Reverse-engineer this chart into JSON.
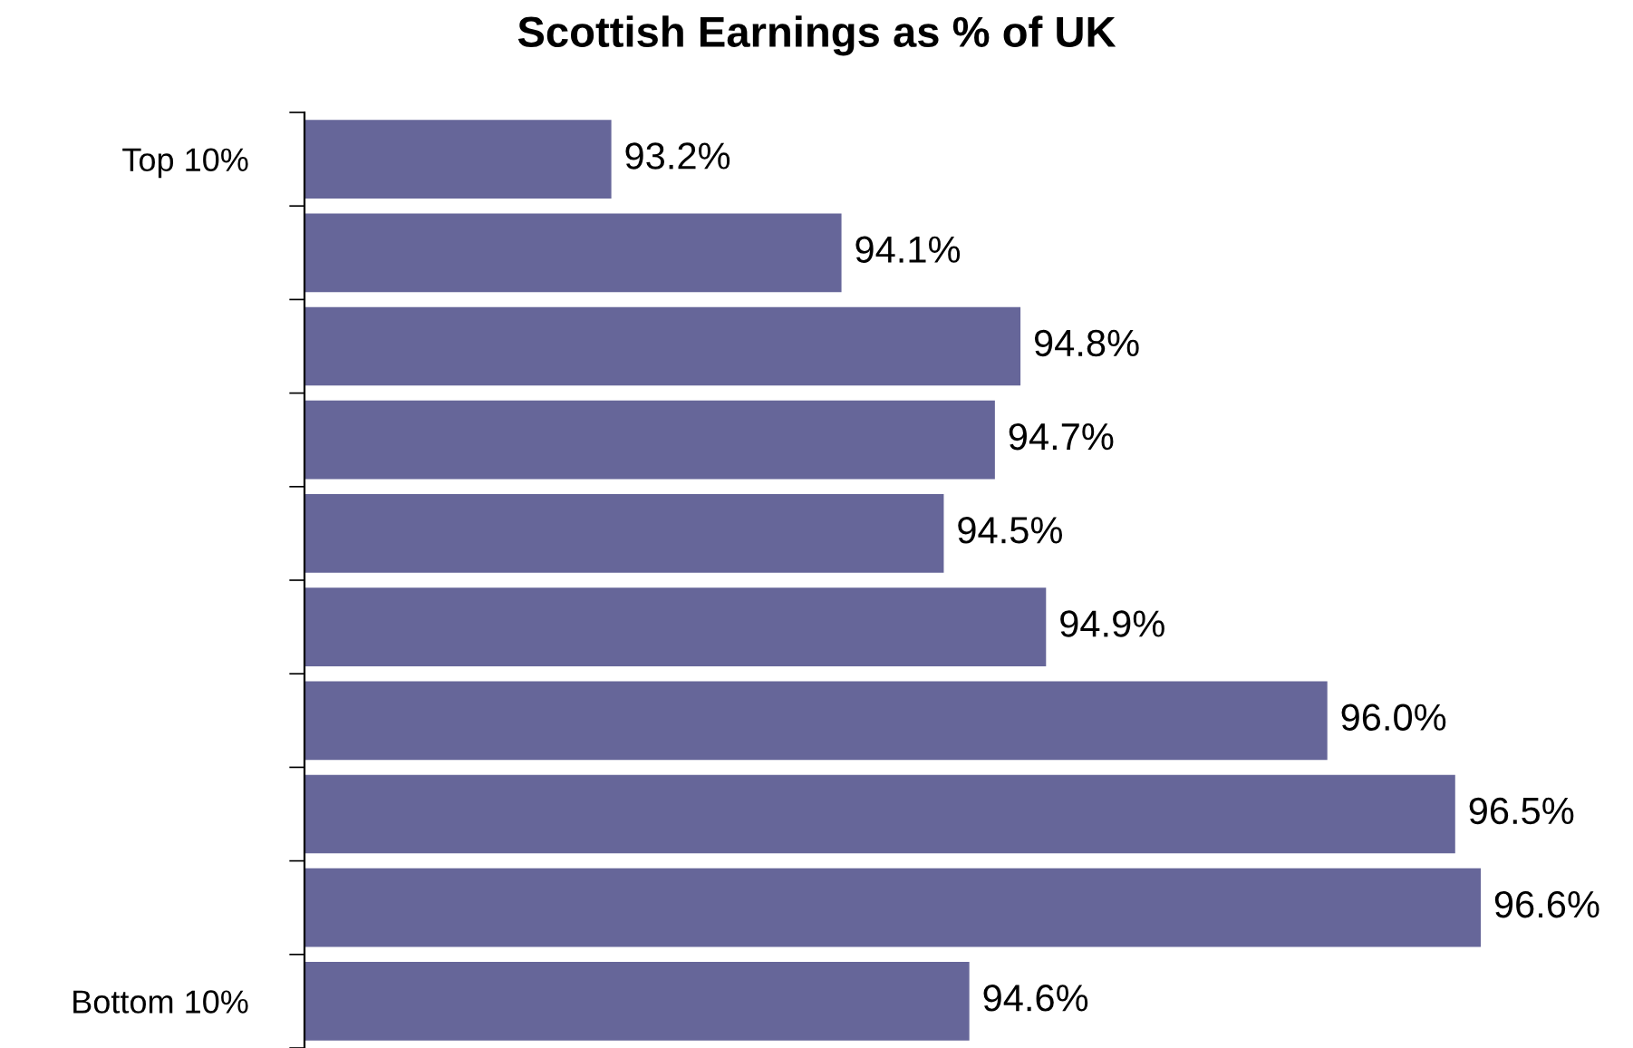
{
  "chart_data": {
    "type": "bar",
    "orientation": "horizontal",
    "title": "Scottish Earnings as % of UK",
    "categories": [
      "Top 10%",
      null,
      null,
      null,
      null,
      null,
      null,
      null,
      null,
      "Bottom 10%"
    ],
    "values": [
      93.2,
      94.1,
      94.8,
      94.7,
      94.5,
      94.9,
      96.0,
      96.5,
      96.6,
      94.6
    ],
    "value_labels": [
      "93.2%",
      "94.1%",
      "94.8%",
      "94.7%",
      "94.5%",
      "94.9%",
      "96.0%",
      "96.5%",
      "96.6%",
      "94.6%"
    ],
    "color": "#666699",
    "xlim": [
      92,
      96.6
    ],
    "grid": false,
    "legend": false,
    "tick_labels": "y"
  }
}
